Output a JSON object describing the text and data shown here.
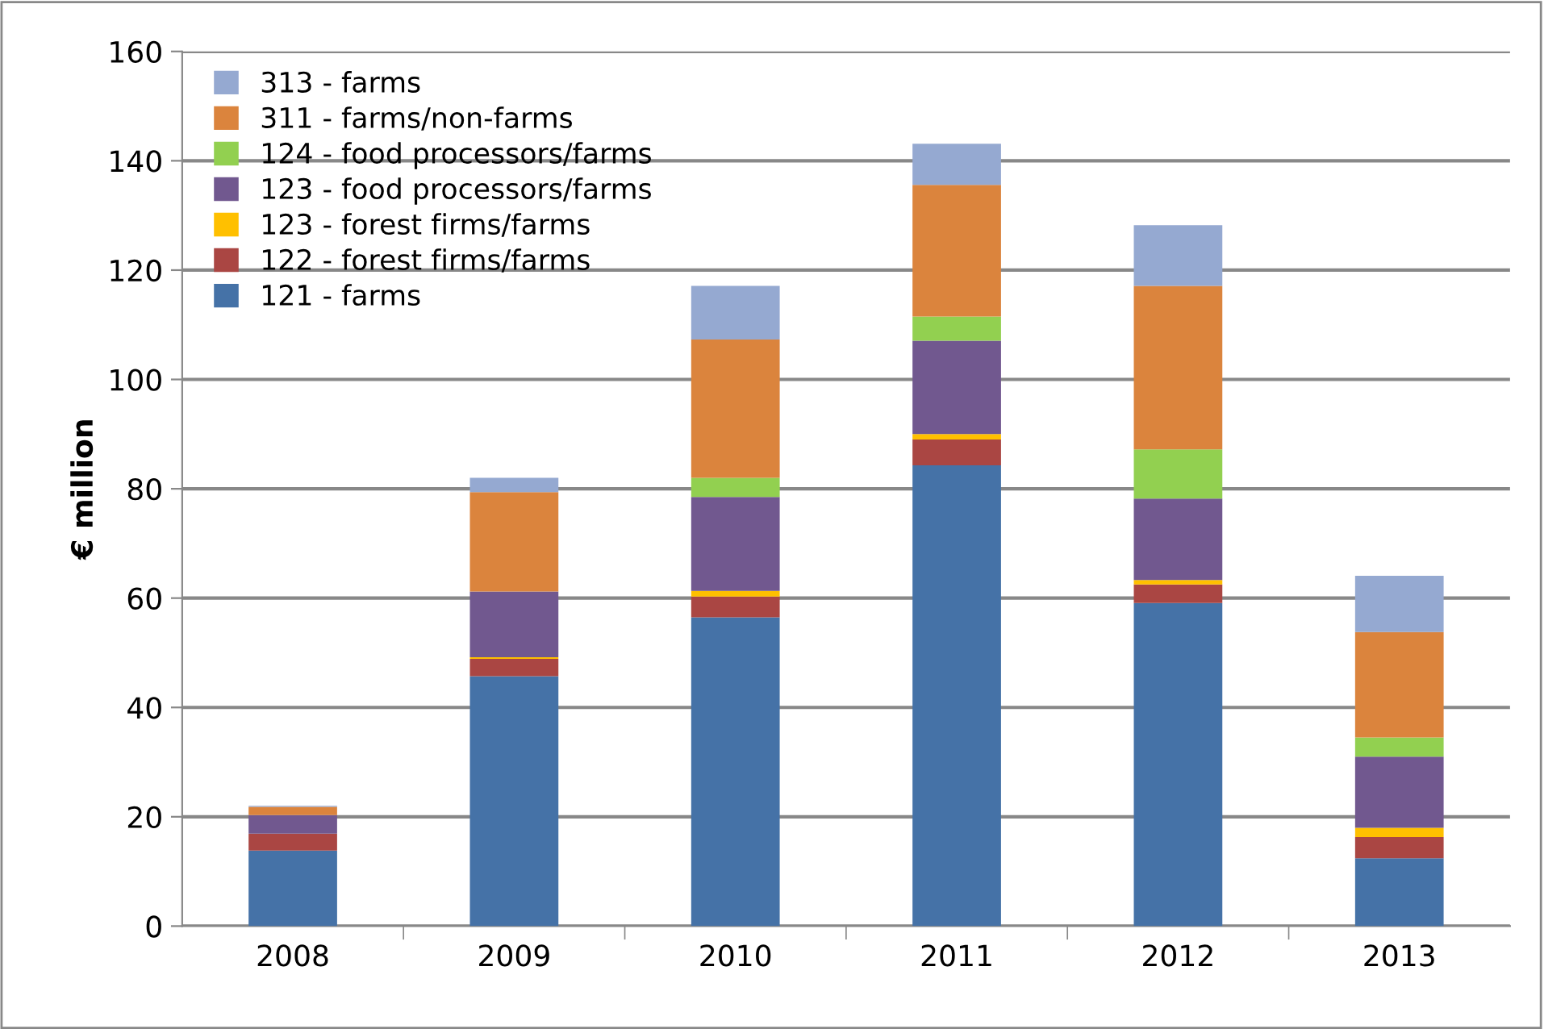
{
  "chart_data": {
    "type": "bar",
    "stacked": true,
    "ylabel": "€ million",
    "categories": [
      "2008",
      "2009",
      "2010",
      "2011",
      "2012",
      "2013"
    ],
    "series": [
      {
        "name": "121 - farms",
        "color": "#4572a7",
        "values": [
          13.8,
          45.7,
          56.5,
          84.3,
          59.1,
          12.4
        ]
      },
      {
        "name": "122 - forest firms/farms",
        "color": "#aa4643",
        "values": [
          3.1,
          3.2,
          3.8,
          4.7,
          3.4,
          3.9
        ]
      },
      {
        "name": "123 - forest firms/farms",
        "color": "#ffc000",
        "values": [
          0,
          0.3,
          1.0,
          1.0,
          0.8,
          1.7
        ]
      },
      {
        "name": "123 - food processors/farms",
        "color": "#71588f",
        "values": [
          3.4,
          12.0,
          17.2,
          17.1,
          14.9,
          13.0
        ]
      },
      {
        "name": "124 - food processors/farms",
        "color": "#92d050",
        "values": [
          0,
          0,
          3.5,
          4.4,
          9.0,
          3.5
        ]
      },
      {
        "name": "311 - farms/non-farms",
        "color": "#db843d",
        "values": [
          1.5,
          18.2,
          25.3,
          24.1,
          29.9,
          19.3
        ]
      },
      {
        "name": "313 - farms",
        "color": "#95a9d1",
        "values": [
          0.2,
          2.6,
          9.8,
          7.5,
          11.1,
          10.3
        ]
      }
    ],
    "ylim": [
      0,
      160
    ],
    "yticks": [
      0,
      20,
      40,
      60,
      80,
      100,
      120,
      140,
      160
    ],
    "grid": "y",
    "legend": "top left"
  }
}
